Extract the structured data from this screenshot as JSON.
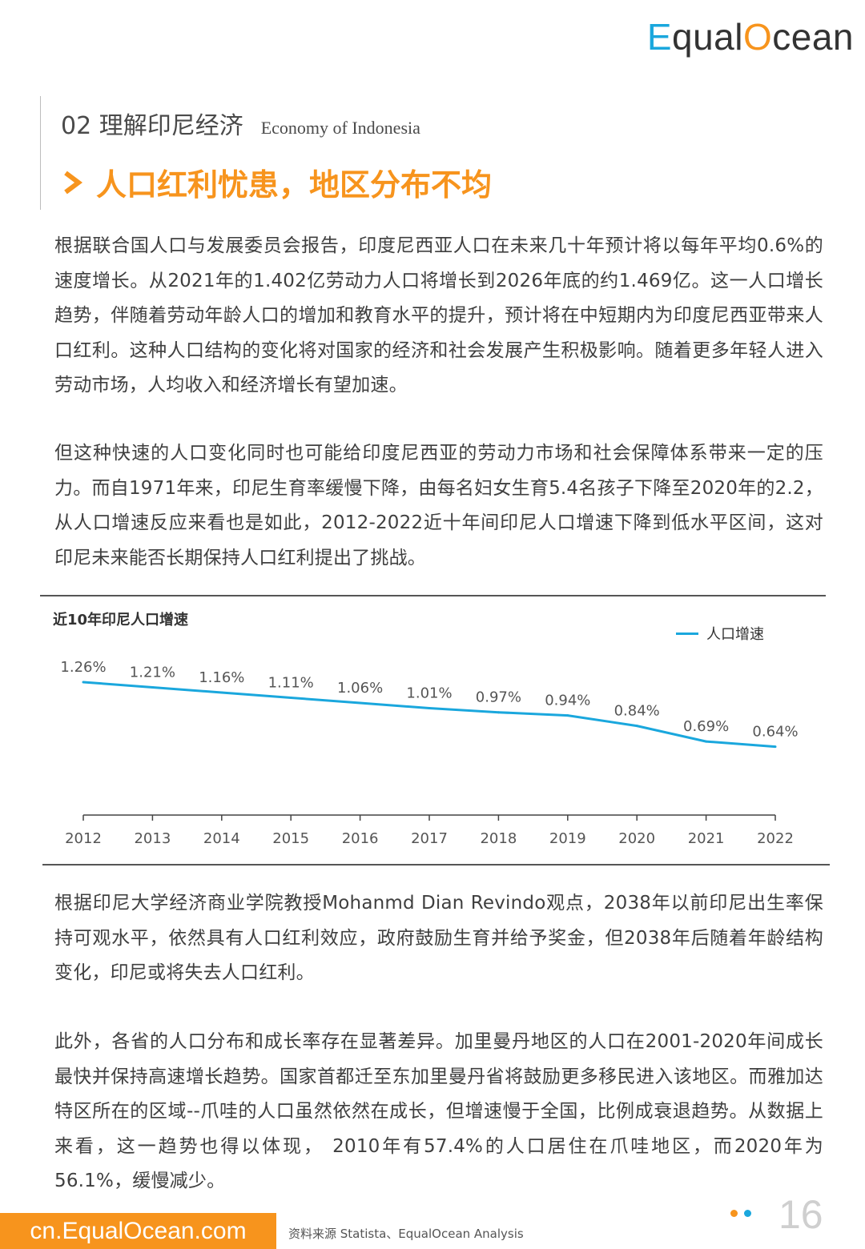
{
  "logo": {
    "e_letter": "E",
    "part1": "qual",
    "o_letter": "O",
    "part2": "cean"
  },
  "section": {
    "title": "02 理解印尼经济",
    "title_en": "Economy of Indonesia"
  },
  "headline": "人口红利忧患，地区分布不均",
  "paragraphs": [
    "根据联合国人口与发展委员会报告，印度尼西亚人口在未来几十年预计将以每年平均0.6%的速度增长。从2021年的1.402亿劳动力人口将增长到2026年底的约1.469亿。这一人口增长趋势，伴随着劳动年龄人口的增加和教育水平的提升，预计将在中短期内为印度尼西亚带来人口红利。这种人口结构的变化将对国家的经济和社会发展产生积极影响。随着更多年轻人进入劳动市场，人均收入和经济增长有望加速。",
    "但这种快速的人口变化同时也可能给印度尼西亚的劳动力市场和社会保障体系带来一定的压力。而自1971年来，印尼生育率缓慢下降，由每名妇女生育5.4名孩子下降至2020年的2.2，从人口增速反应来看也是如此，2012-2022近十年间印尼人口增速下降到低水平区间，这对印尼未来能否长期保持人口红利提出了挑战。",
    "根据印尼大学经济商业学院教授Mohanmd Dian Revindo观点，2038年以前印尼出生率保持可观水平，依然具有人口红利效应，政府鼓励生育并给予奖金，但2038年后随着年龄结构变化，印尼或将失去人口红利。",
    "此外，各省的人口分布和成长率存在显著差异。加里曼丹地区的人口在2001-2020年间成长最快并保持高速增长趋势。国家首都迁至东加里曼丹省将鼓励更多移民进入该地区。而雅加达特区所在的区域--爪哇的人口虽然依然在成长，但增速慢于全国，比例成衰退趋势。从数据上来看，这一趋势也得以体现， 2010年有57.4%的人口居住在爪哇地区，而2020年为56.1%，缓慢减少。"
  ],
  "chart_data": {
    "type": "line",
    "title": "近10年印尼人口增速",
    "legend": "人口增速",
    "legend_position": "top-right",
    "categories": [
      "2012",
      "2013",
      "2014",
      "2015",
      "2016",
      "2017",
      "2018",
      "2019",
      "2020",
      "2021",
      "2022"
    ],
    "series": [
      {
        "name": "人口增速",
        "values": [
          1.26,
          1.21,
          1.16,
          1.11,
          1.06,
          1.01,
          0.97,
          0.94,
          0.84,
          0.69,
          0.64
        ]
      }
    ],
    "labels": [
      "1.26%",
      "1.21%",
      "1.16%",
      "1.11%",
      "1.06%",
      "1.01%",
      "0.97%",
      "0.94%",
      "0.84%",
      "0.69%",
      "0.64%"
    ],
    "color": "#1aa7dd",
    "grid": false
  },
  "footer": {
    "site": "cn.EqualOcean.com",
    "source": "资料来源  Statista、EqualOcean Analysis",
    "page": "16"
  },
  "colors": {
    "accent": "#f7941d",
    "blue": "#1aa7dd"
  }
}
